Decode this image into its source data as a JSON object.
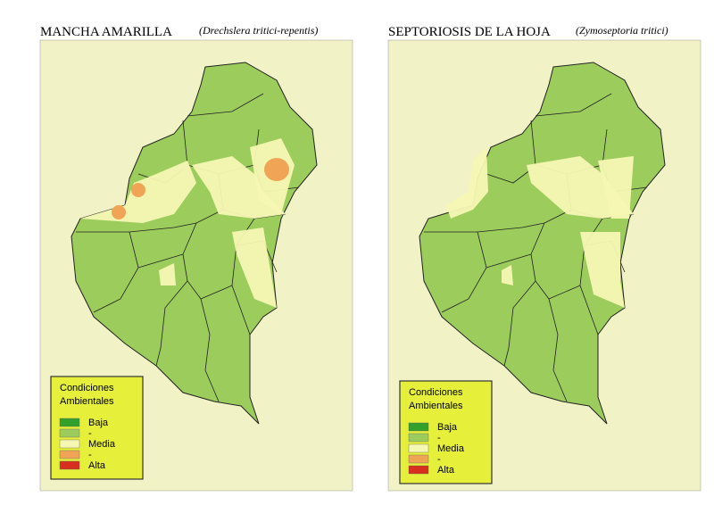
{
  "panels": [
    {
      "title": "MANCHA AMARILLA",
      "subtitle": "(Drechslera tritici-repentis)",
      "legend": {
        "title_lines": [
          "Condiciones",
          "Ambientales"
        ],
        "items": [
          {
            "label": "Baja",
            "color": "#33a02c"
          },
          {
            "label": "-",
            "color": "#9ccc5c"
          },
          {
            "label": "Media",
            "color": "#f7f7b4"
          },
          {
            "label": "-",
            "color": "#f0a455"
          },
          {
            "label": "Alta",
            "color": "#d7301f"
          }
        ]
      }
    },
    {
      "title": "SEPTORIOSIS DE LA HOJA",
      "subtitle": "(Zymoseptoria tritici)",
      "legend": {
        "title_lines": [
          "Condiciones",
          "Ambientales"
        ],
        "items": [
          {
            "label": "Baja",
            "color": "#33a02c"
          },
          {
            "label": "-",
            "color": "#9ccc5c"
          },
          {
            "label": "Media",
            "color": "#f7f7b4"
          },
          {
            "label": "-",
            "color": "#f0a455"
          },
          {
            "label": "Alta",
            "color": "#d7301f"
          }
        ]
      }
    }
  ]
}
